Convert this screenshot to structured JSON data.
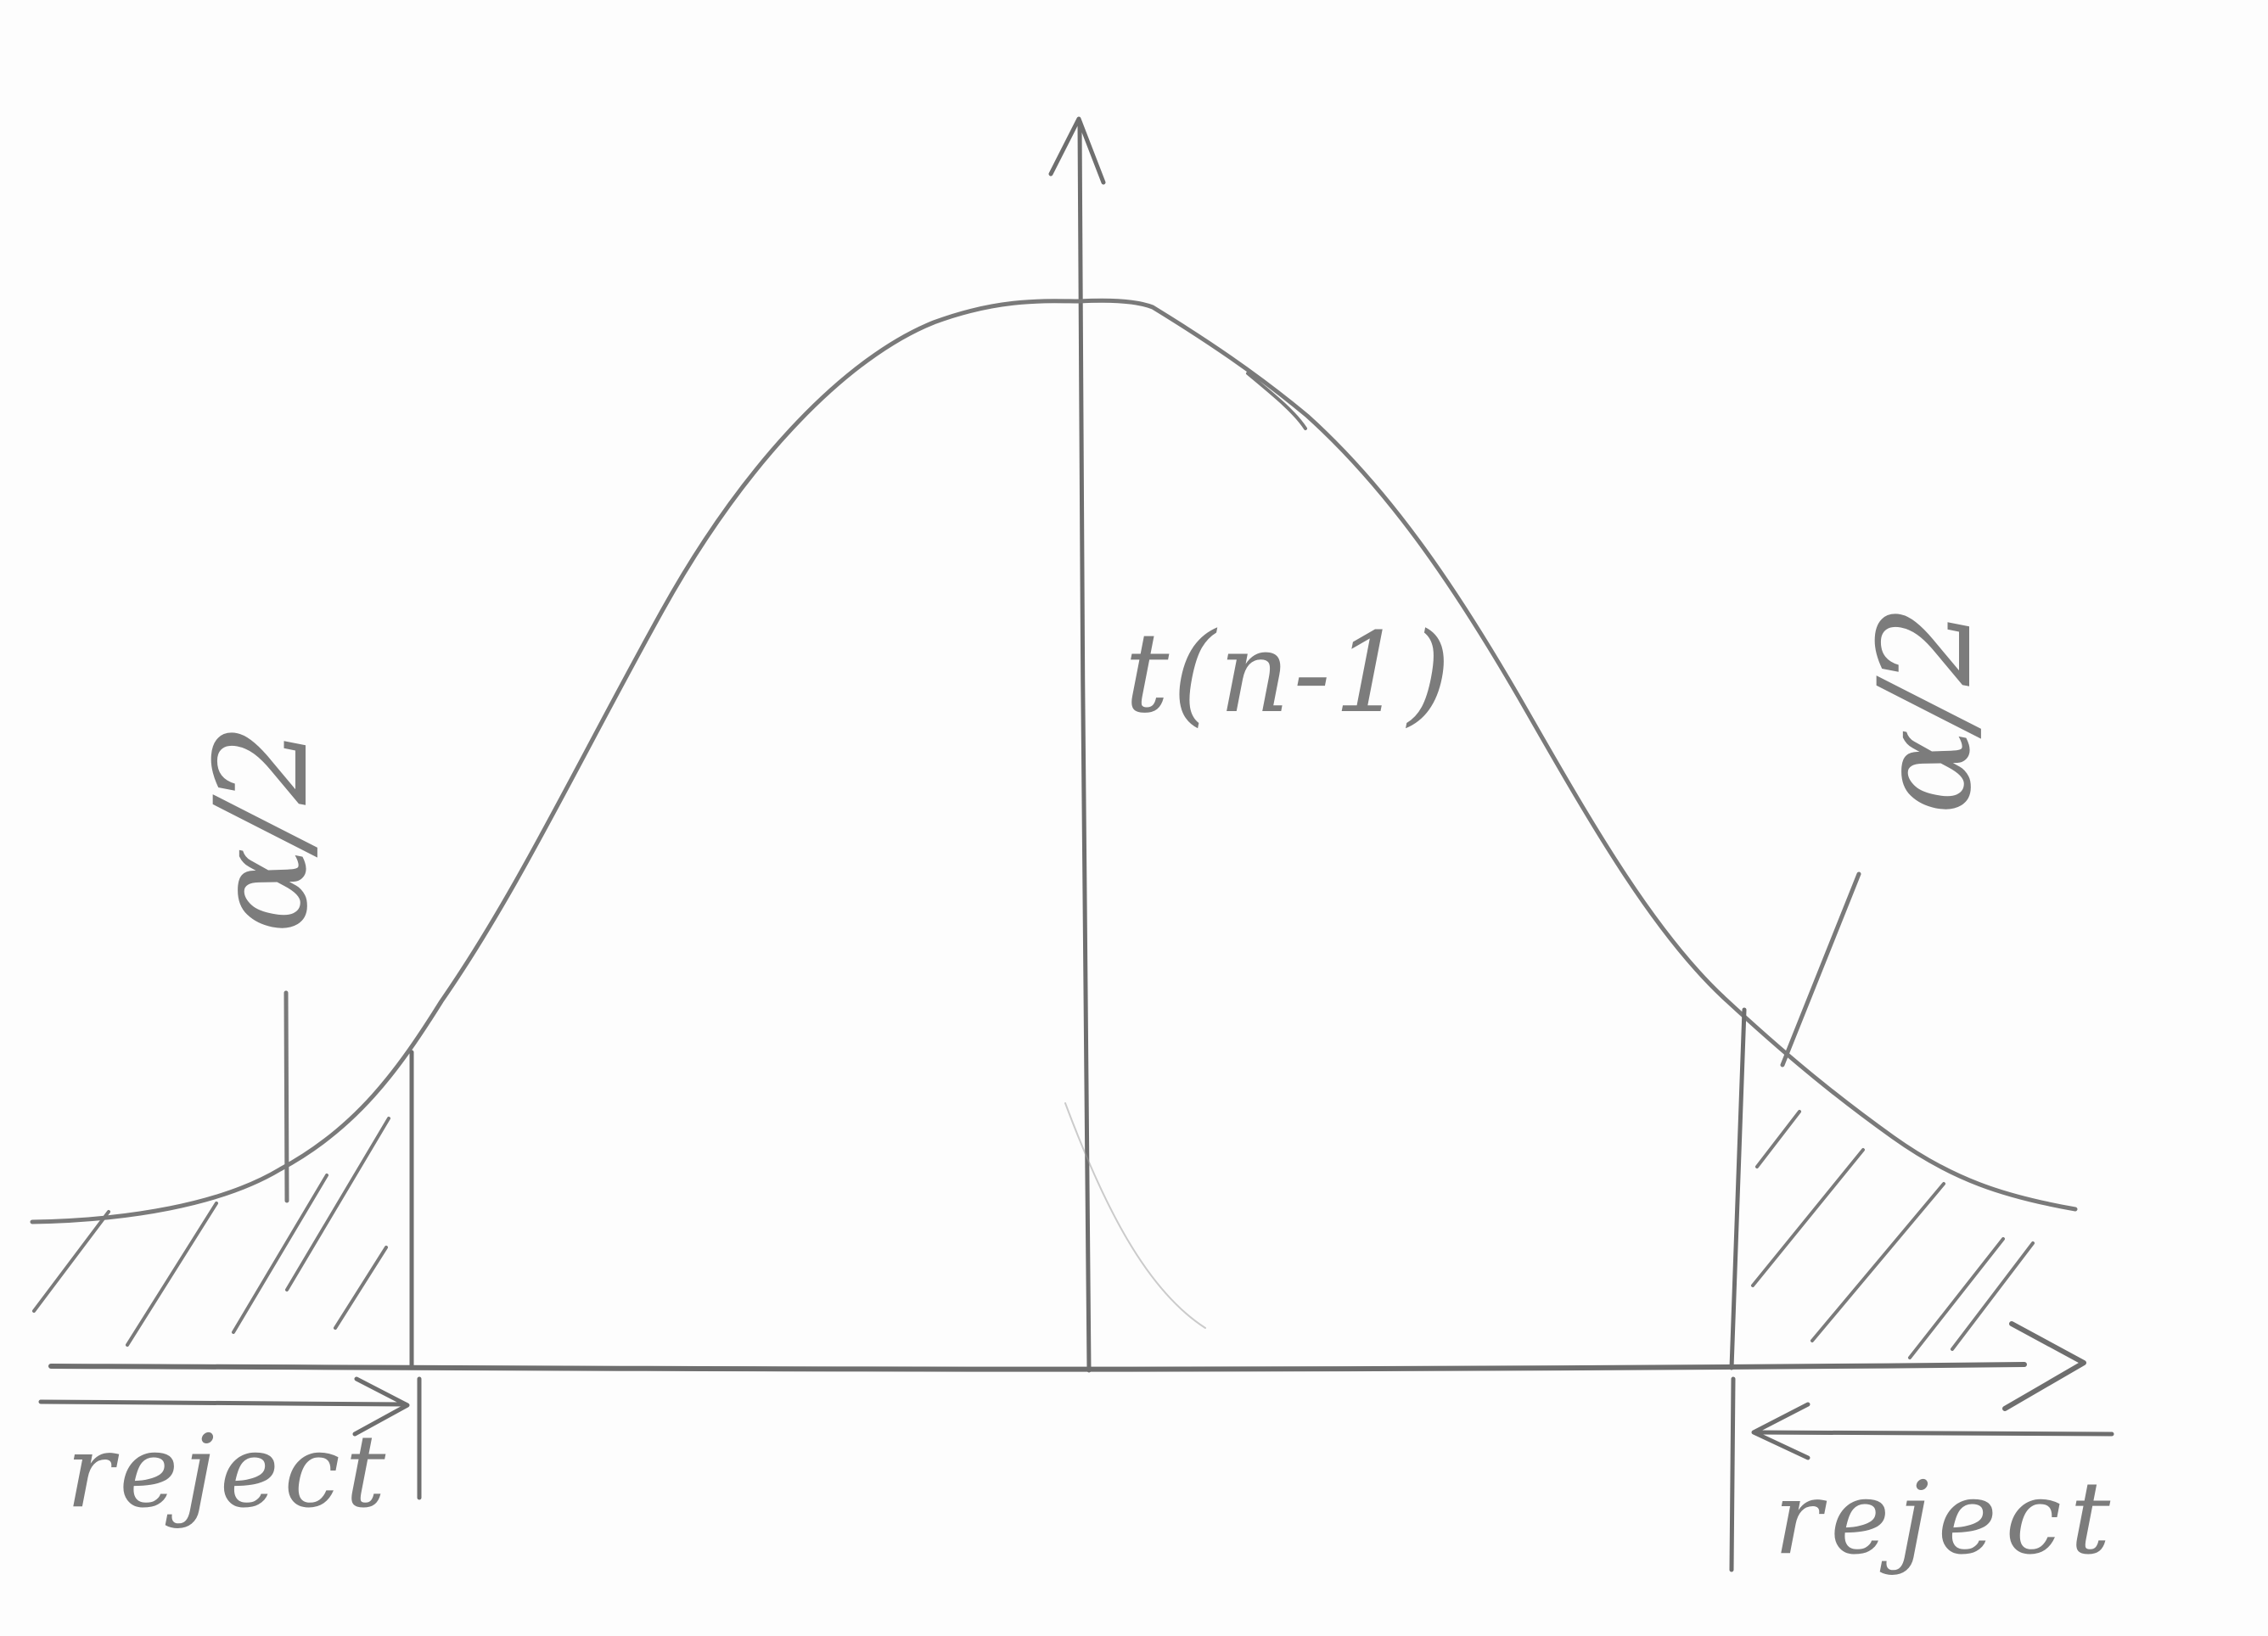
{
  "diagram": {
    "distribution_label": "t(n-1)",
    "left_tail": {
      "area_label": "α/2",
      "region_label": "reject"
    },
    "right_tail": {
      "area_label": "α/2",
      "region_label": "reject"
    }
  }
}
